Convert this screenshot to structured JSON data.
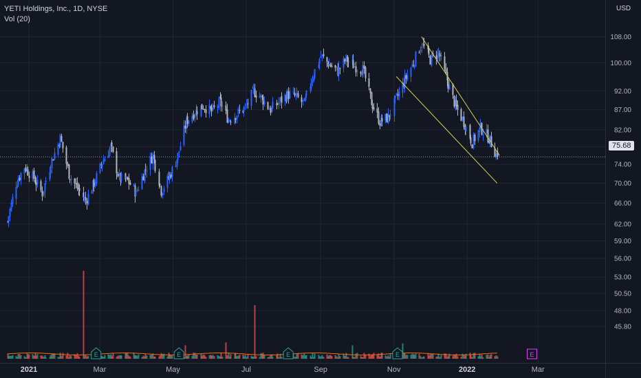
{
  "legend": {
    "title": "YETI Holdings, Inc., 1D, NYSE",
    "volume": "Vol (20)"
  },
  "currency": "USD",
  "last_price_label": "75.68",
  "colors": {
    "background": "#131722",
    "up": "#2962ff",
    "down": "#b2b5be",
    "grid": "#1f2433",
    "channel": "#d4d44a",
    "vol_up": "#26a69a",
    "vol_down": "#ef5350",
    "vol_ma": "#ff6d00",
    "earnings_past": "#26a69a",
    "earnings_future": "#e040fb"
  },
  "icons": {
    "earnings": "E-badge"
  },
  "chart_data": {
    "type": "candlestick",
    "title": "YETI Holdings, Inc., 1D, NYSE",
    "y_scale": "log",
    "ylim": [
      45.0,
      108.0
    ],
    "y_ticks": [
      "108.00",
      "100.00",
      "92.00",
      "87.00",
      "82.00",
      "78.00",
      "74.00",
      "70.00",
      "66.00",
      "62.00",
      "59.00",
      "56.00",
      "53.00",
      "50.50",
      "48.00",
      "45.80"
    ],
    "x_ticks": [
      "2021",
      "Mar",
      "May",
      "Jul",
      "Sep",
      "Nov",
      "2022",
      "Mar"
    ],
    "x_tick_dates": [
      "2021-01-01",
      "2021-03-01",
      "2021-05-01",
      "2021-07-01",
      "2021-09-01",
      "2021-11-01",
      "2022-01-01",
      "2022-03-01"
    ],
    "last_price": 75.68,
    "price_path": [
      [
        "2020-12-14",
        62.5
      ],
      [
        "2020-12-21",
        70.0
      ],
      [
        "2020-12-28",
        73.5
      ],
      [
        "2021-01-05",
        71.0
      ],
      [
        "2021-01-12",
        68.0
      ],
      [
        "2021-01-20",
        75.0
      ],
      [
        "2021-01-27",
        80.0
      ],
      [
        "2021-02-03",
        72.0
      ],
      [
        "2021-02-10",
        69.0
      ],
      [
        "2021-02-17",
        66.5
      ],
      [
        "2021-02-24",
        70.0
      ],
      [
        "2021-03-03",
        74.5
      ],
      [
        "2021-03-10",
        78.0
      ],
      [
        "2021-03-17",
        71.0
      ],
      [
        "2021-03-24",
        70.5
      ],
      [
        "2021-03-31",
        68.0
      ],
      [
        "2021-04-07",
        72.5
      ],
      [
        "2021-04-14",
        76.0
      ],
      [
        "2021-04-21",
        68.5
      ],
      [
        "2021-04-28",
        71.5
      ],
      [
        "2021-05-05",
        76.0
      ],
      [
        "2021-05-12",
        84.0
      ],
      [
        "2021-05-19",
        86.5
      ],
      [
        "2021-05-26",
        88.0
      ],
      [
        "2021-06-02",
        86.5
      ],
      [
        "2021-06-09",
        89.0
      ],
      [
        "2021-06-16",
        84.5
      ],
      [
        "2021-06-23",
        86.0
      ],
      [
        "2021-06-30",
        87.5
      ],
      [
        "2021-07-07",
        92.0
      ],
      [
        "2021-07-14",
        90.0
      ],
      [
        "2021-07-21",
        87.0
      ],
      [
        "2021-07-28",
        89.0
      ],
      [
        "2021-08-04",
        91.0
      ],
      [
        "2021-08-11",
        90.5
      ],
      [
        "2021-08-18",
        88.5
      ],
      [
        "2021-08-25",
        96.0
      ],
      [
        "2021-09-01",
        102.0
      ],
      [
        "2021-09-08",
        99.5
      ],
      [
        "2021-09-15",
        97.5
      ],
      [
        "2021-09-22",
        101.0
      ],
      [
        "2021-09-29",
        99.0
      ],
      [
        "2021-10-06",
        98.0
      ],
      [
        "2021-10-13",
        89.0
      ],
      [
        "2021-10-20",
        84.0
      ],
      [
        "2021-10-27",
        85.0
      ],
      [
        "2021-11-03",
        90.0
      ],
      [
        "2021-11-10",
        95.0
      ],
      [
        "2021-11-17",
        100.0
      ],
      [
        "2021-11-24",
        106.0
      ],
      [
        "2021-12-01",
        101.0
      ],
      [
        "2021-12-08",
        103.0
      ],
      [
        "2021-12-15",
        95.0
      ],
      [
        "2021-12-22",
        88.0
      ],
      [
        "2021-12-29",
        84.0
      ],
      [
        "2022-01-05",
        79.0
      ],
      [
        "2022-01-12",
        82.5
      ],
      [
        "2022-01-19",
        80.0
      ],
      [
        "2022-01-26",
        75.68
      ]
    ],
    "volume_spikes": [
      [
        "2021-02-15",
        "high"
      ],
      [
        "2021-07-08",
        "high"
      ],
      [
        "2021-05-11",
        "medium"
      ],
      [
        "2021-06-14",
        "medium"
      ],
      [
        "2021-09-27",
        "medium"
      ],
      [
        "2021-11-08",
        "medium"
      ]
    ],
    "earnings_events": [
      "2021-02-26",
      "2021-05-06",
      "2021-08-05",
      "2021-11-04",
      "2022-02-24"
    ],
    "channel_lines": [
      {
        "name": "upper",
        "start": [
          "2021-11-24",
          108.0
        ],
        "end": [
          "2022-01-28",
          76.0
        ]
      },
      {
        "name": "lower",
        "start": [
          "2021-11-03",
          96.0
        ],
        "end": [
          "2022-01-26",
          70.0
        ]
      }
    ],
    "legend": [
      "Vol (20)"
    ],
    "grid": true
  }
}
